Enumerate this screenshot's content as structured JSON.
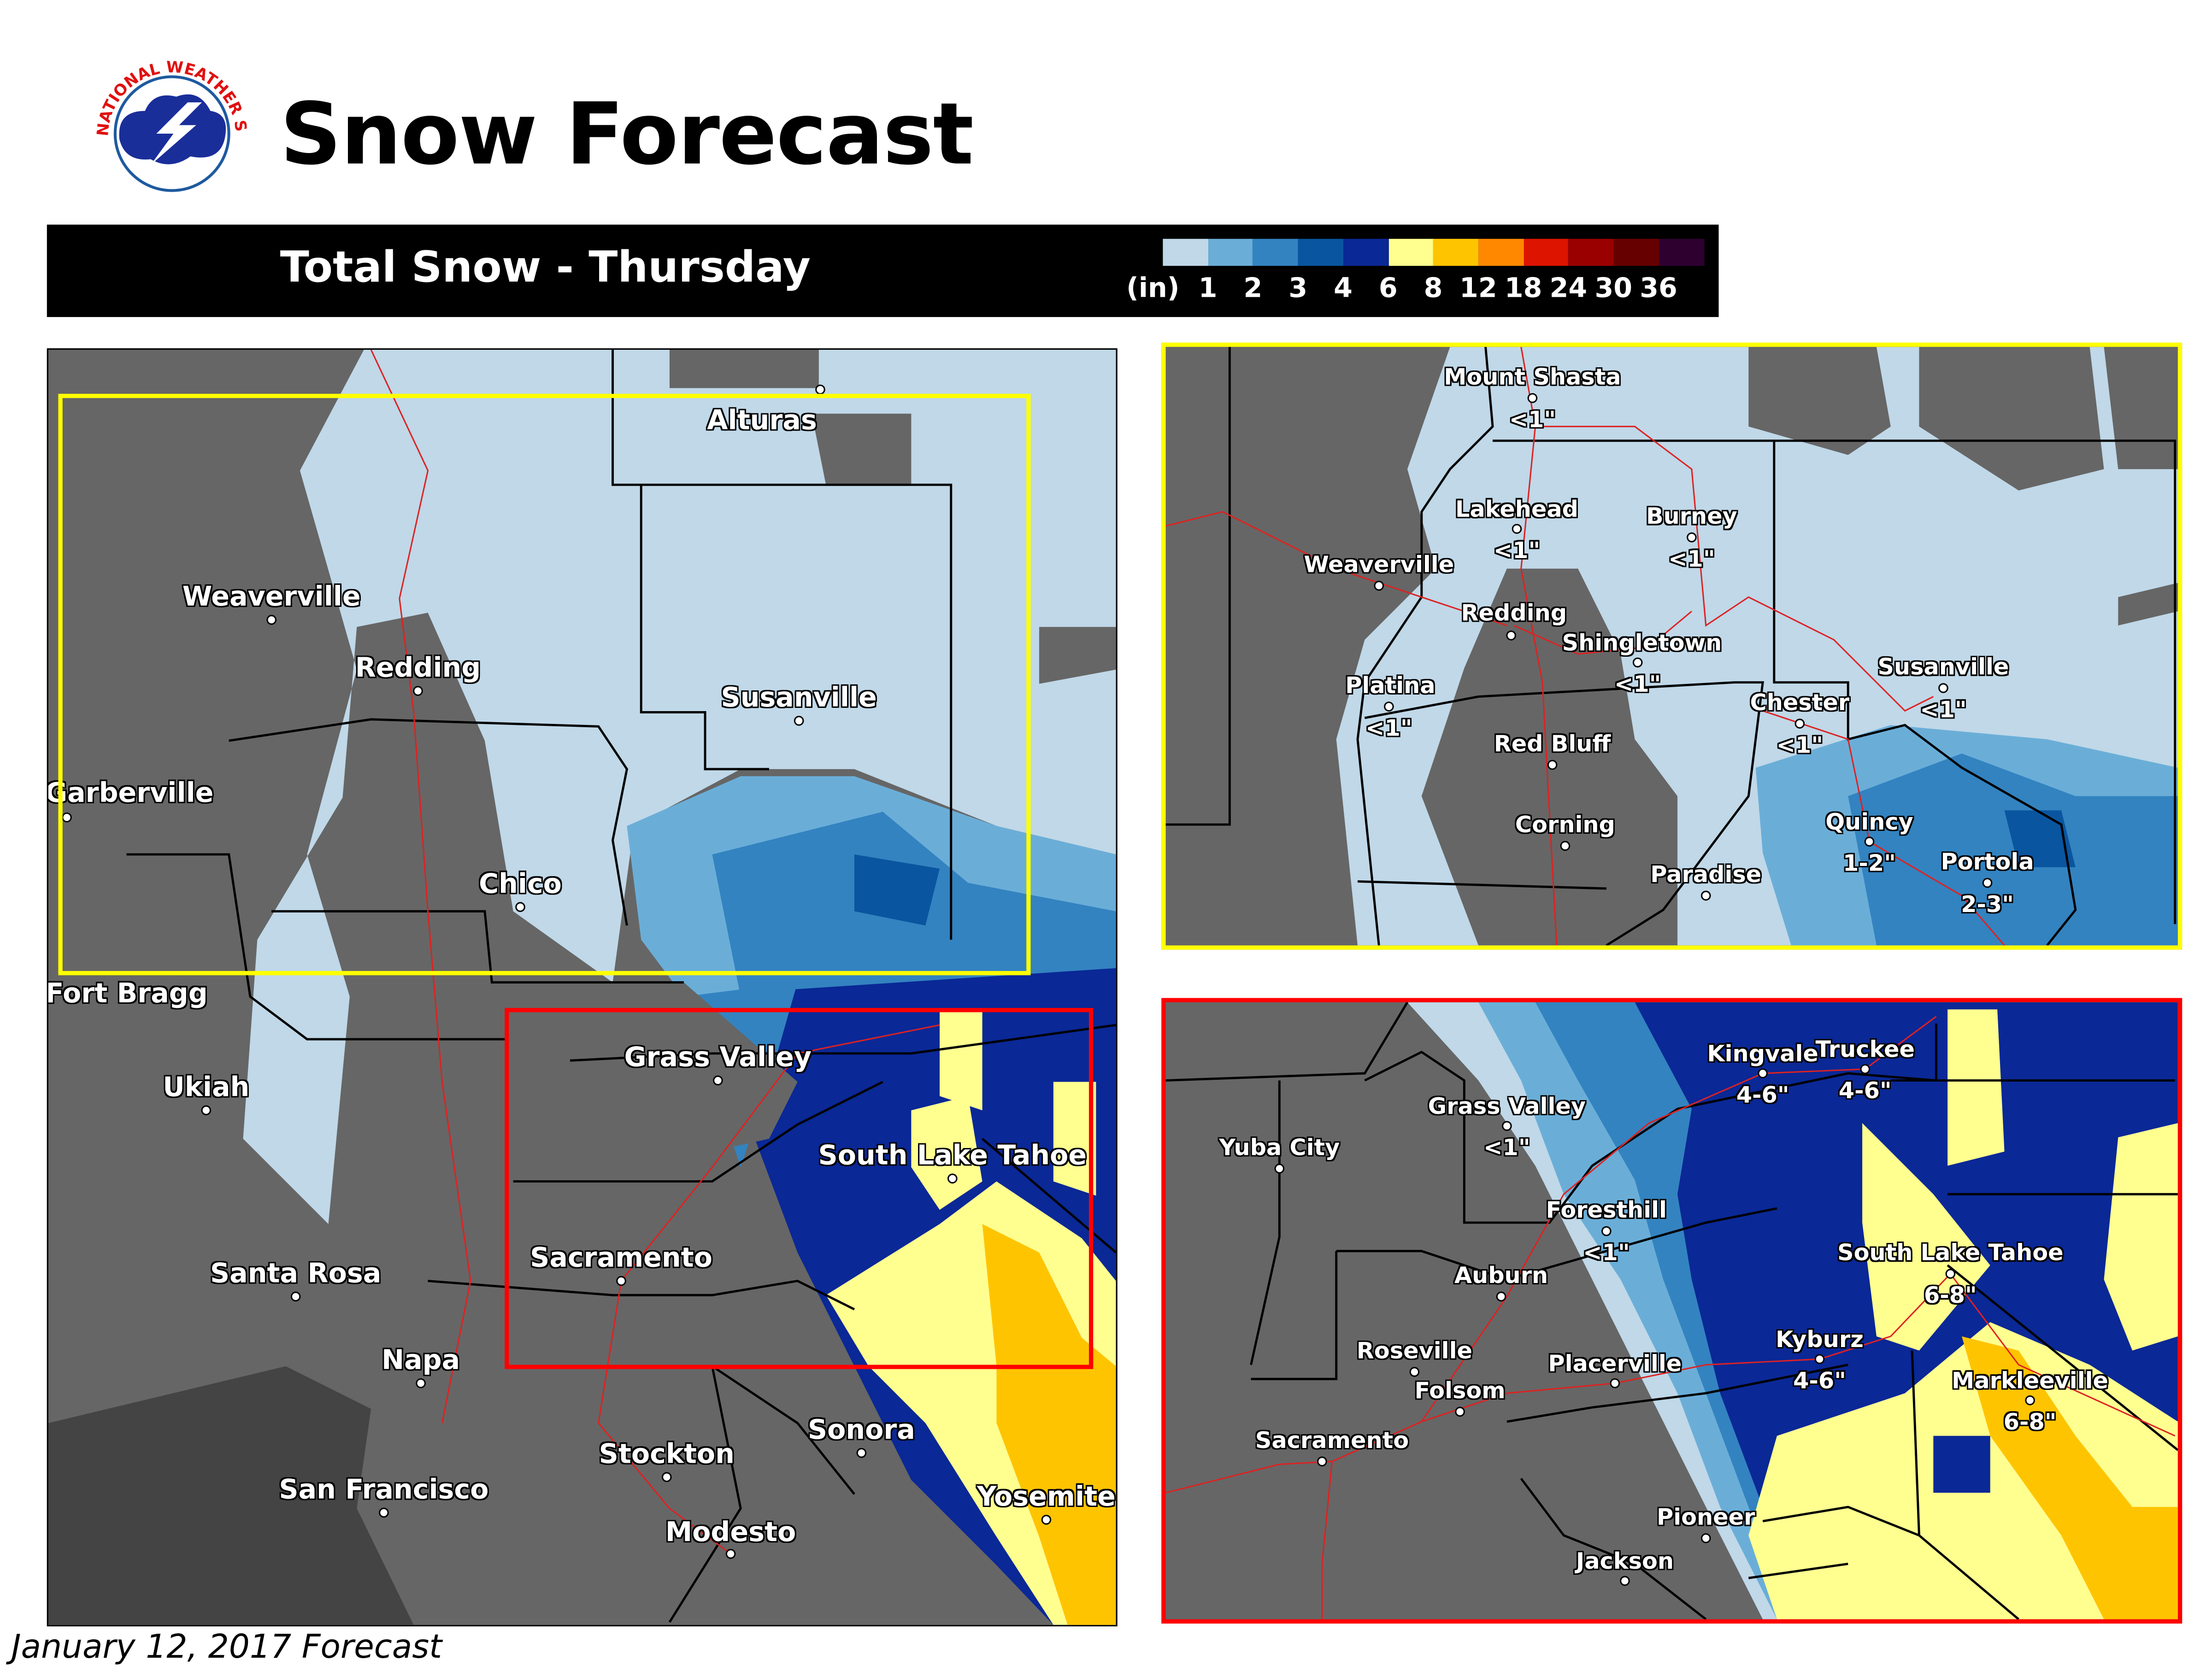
{
  "header": {
    "logo_text": "NATIONAL WEATHER SERVICE",
    "title": "Snow Forecast"
  },
  "banner": {
    "subtitle": "Total Snow - Thursday",
    "legend": {
      "unit_label": "(in)",
      "ticks": [
        "1",
        "2",
        "3",
        "4",
        "6",
        "8",
        "12",
        "18",
        "24",
        "30",
        "36"
      ],
      "colors": [
        "#c0d8e8",
        "#6aaed8",
        "#3383c0",
        "#0a55a0",
        "#0a2896",
        "#ffff90",
        "#ffc400",
        "#ff8800",
        "#dc1400",
        "#9a0000",
        "#660000",
        "#2e0030"
      ]
    }
  },
  "colors": {
    "land_no_snow": "#666666",
    "ocean": "#444444",
    "north_box": "#ffff00",
    "central_box": "#ff0000",
    "roads": "#dd2222"
  },
  "main_map": {
    "cities": [
      {
        "name": "Alturas"
      },
      {
        "name": "Weaverville"
      },
      {
        "name": "Redding"
      },
      {
        "name": "Susanville"
      },
      {
        "name": "Garberville"
      },
      {
        "name": "Chico"
      },
      {
        "name": "Fort Bragg"
      },
      {
        "name": "Grass Valley"
      },
      {
        "name": "Ukiah"
      },
      {
        "name": "South Lake Tahoe"
      },
      {
        "name": "Sacramento"
      },
      {
        "name": "Santa Rosa"
      },
      {
        "name": "Napa"
      },
      {
        "name": "Sonora"
      },
      {
        "name": "Stockton"
      },
      {
        "name": "San Francisco"
      },
      {
        "name": "Yosemite"
      },
      {
        "name": "Modesto"
      }
    ]
  },
  "north_inset": {
    "cities": [
      {
        "name": "Mount Shasta",
        "amount": "<1\""
      },
      {
        "name": "Lakehead",
        "amount": "<1\""
      },
      {
        "name": "Burney",
        "amount": "<1\""
      },
      {
        "name": "Weaverville",
        "amount": ""
      },
      {
        "name": "Redding",
        "amount": ""
      },
      {
        "name": "Shingletown",
        "amount": "<1\""
      },
      {
        "name": "Platina",
        "amount": "<1\""
      },
      {
        "name": "Susanville",
        "amount": "<1\""
      },
      {
        "name": "Chester",
        "amount": "<1\""
      },
      {
        "name": "Red Bluff",
        "amount": ""
      },
      {
        "name": "Corning",
        "amount": ""
      },
      {
        "name": "Paradise",
        "amount": ""
      },
      {
        "name": "Quincy",
        "amount": "1-2\""
      },
      {
        "name": "Portola",
        "amount": "2-3\""
      }
    ]
  },
  "central_inset": {
    "cities": [
      {
        "name": "Grass Valley",
        "amount": "<1\""
      },
      {
        "name": "Kingvale",
        "amount": "4-6\""
      },
      {
        "name": "Truckee",
        "amount": "4-6\""
      },
      {
        "name": "Yuba City",
        "amount": ""
      },
      {
        "name": "Foresthill",
        "amount": "<1\""
      },
      {
        "name": "South Lake Tahoe",
        "amount": "6-8\""
      },
      {
        "name": "Auburn",
        "amount": ""
      },
      {
        "name": "Kyburz",
        "amount": "4-6\""
      },
      {
        "name": "Roseville",
        "amount": ""
      },
      {
        "name": "Placerville",
        "amount": ""
      },
      {
        "name": "Markleeville",
        "amount": "6-8\""
      },
      {
        "name": "Folsom",
        "amount": ""
      },
      {
        "name": "Sacramento",
        "amount": ""
      },
      {
        "name": "Pioneer",
        "amount": ""
      },
      {
        "name": "Jackson",
        "amount": ""
      }
    ]
  },
  "footer": {
    "text": "January 12, 2017 Forecast"
  }
}
